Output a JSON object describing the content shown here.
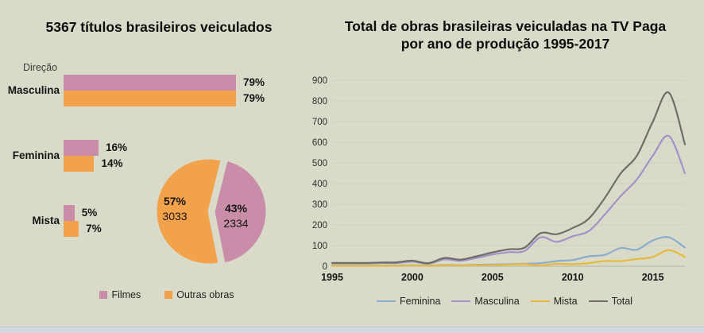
{
  "background": "#d9dbc8",
  "bottom_strip_color": "#cfd9df",
  "chart_data": [
    {
      "type": "bar",
      "title": "5367 títulos brasileiros veiculados",
      "group_label": "Direção",
      "orientation": "horizontal",
      "categories": [
        "Masculina",
        "Feminina",
        "Mista"
      ],
      "series": [
        {
          "name": "Filmes",
          "color": "#c98da9",
          "values_pct": [
            79,
            16,
            5
          ]
        },
        {
          "name": "Outras obras",
          "color": "#f2a24b",
          "values_pct": [
            79,
            14,
            7
          ]
        }
      ],
      "value_label_suffix": "%"
    },
    {
      "type": "pie",
      "slices": [
        {
          "name": "Outras obras",
          "pct": 57,
          "label": "57%",
          "count": 3033,
          "color": "#f2a24b"
        },
        {
          "name": "Filmes",
          "pct": 43,
          "label": "43%",
          "count": 2334,
          "color": "#c98da9",
          "exploded": true
        }
      ],
      "legend_position": "bottom"
    },
    {
      "type": "line",
      "title": "Total de obras brasileiras veiculadas na TV Paga por ano de produção 1995-2017",
      "title_lines": [
        "Total de obras brasileiras veiculadas na TV Paga",
        "por ano de produção 1995-2017"
      ],
      "x": [
        1995,
        1996,
        1997,
        1998,
        1999,
        2000,
        2001,
        2002,
        2003,
        2004,
        2005,
        2006,
        2007,
        2008,
        2009,
        2010,
        2011,
        2012,
        2013,
        2014,
        2015,
        2016,
        2017
      ],
      "series": [
        {
          "name": "Feminina",
          "color": "#8aadcc",
          "values": [
            3,
            3,
            3,
            3,
            4,
            5,
            3,
            6,
            5,
            7,
            8,
            10,
            12,
            15,
            25,
            30,
            48,
            55,
            88,
            80,
            125,
            140,
            90
          ]
        },
        {
          "name": "Masculina",
          "color": "#a292cb",
          "values": [
            13,
            13,
            13,
            15,
            15,
            22,
            12,
            33,
            26,
            40,
            57,
            68,
            74,
            140,
            118,
            145,
            170,
            250,
            340,
            420,
            535,
            630,
            450
          ]
        },
        {
          "name": "Mista",
          "color": "#e9ba3a",
          "values": [
            2,
            2,
            2,
            2,
            2,
            3,
            2,
            4,
            3,
            4,
            5,
            8,
            10,
            4,
            12,
            10,
            15,
            25,
            25,
            35,
            45,
            78,
            45
          ]
        },
        {
          "name": "Total",
          "color": "#6f6d65",
          "values": [
            16,
            16,
            16,
            18,
            19,
            27,
            15,
            40,
            32,
            48,
            67,
            82,
            90,
            160,
            155,
            185,
            230,
            330,
            450,
            535,
            700,
            840,
            590
          ]
        }
      ],
      "ylim": [
        0,
        900
      ],
      "ytick_step": 100,
      "xticks": [
        1995,
        2000,
        2005,
        2010,
        2015
      ],
      "grid": true,
      "grid_color": "#cfd2bf",
      "axis_line_color": "#b3b5a3",
      "legend_position": "bottom"
    }
  ]
}
